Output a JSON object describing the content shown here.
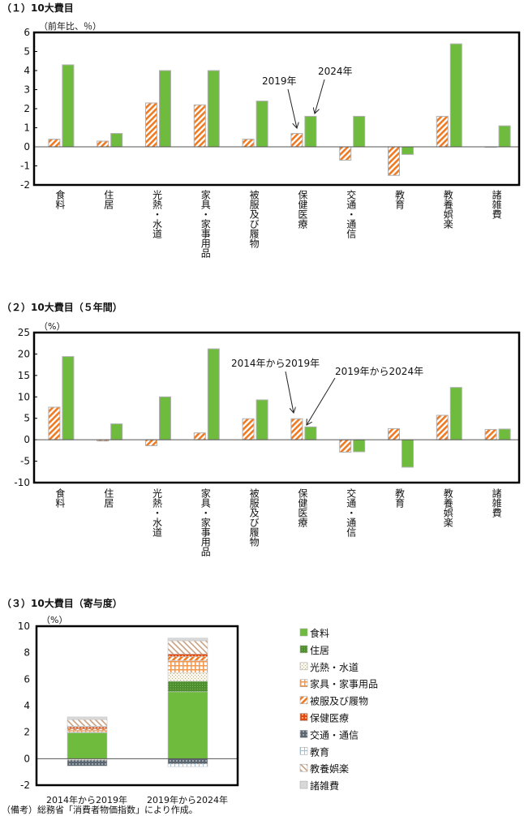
{
  "chart_data": [
    {
      "type": "bar",
      "title": "（１）10大費目",
      "ylabel": "（前年比、％）",
      "ylim": [
        -2,
        6
      ],
      "yticks": [
        -2,
        -1,
        0,
        1,
        2,
        3,
        4,
        5,
        6
      ],
      "categories": [
        "食料",
        "住居",
        "光熱・水道",
        "家具・家事用品",
        "被服及び履物",
        "保健医療",
        "交通・通信",
        "教育",
        "教養娯楽",
        "諸雑費"
      ],
      "series": [
        {
          "name": "2019年",
          "values": [
            0.4,
            0.3,
            2.3,
            2.2,
            0.4,
            0.7,
            -0.7,
            -1.5,
            1.6,
            0.0
          ]
        },
        {
          "name": "2024年",
          "values": [
            4.3,
            0.7,
            4.0,
            4.0,
            2.4,
            1.6,
            1.6,
            -0.4,
            5.4,
            1.1
          ]
        }
      ]
    },
    {
      "type": "bar",
      "title": "（２）10大費目（５年間）",
      "ylabel": "（%）",
      "ylim": [
        -10,
        25
      ],
      "yticks": [
        -10,
        -5,
        0,
        5,
        10,
        15,
        20,
        25
      ],
      "categories": [
        "食料",
        "住居",
        "光熱・水道",
        "家具・家事用品",
        "被服及び履物",
        "保健医療",
        "交通・通信",
        "教育",
        "教養娯楽",
        "諸雑費"
      ],
      "series": [
        {
          "name": "2014年から2019年",
          "values": [
            7.6,
            -0.3,
            -1.4,
            1.6,
            4.9,
            4.9,
            -2.9,
            2.6,
            5.7,
            2.4
          ]
        },
        {
          "name": "2019年から2024年",
          "values": [
            19.4,
            3.7,
            10.0,
            21.2,
            9.3,
            3.0,
            -2.8,
            -6.4,
            12.2,
            2.5
          ]
        }
      ]
    },
    {
      "type": "bar",
      "stacked": true,
      "title": "（３）10大費目（寄与度）",
      "ylabel": "（%）",
      "ylim": [
        -2,
        10
      ],
      "yticks": [
        -2,
        0,
        2,
        4,
        6,
        8,
        10
      ],
      "categories": [
        "2014年から2019年",
        "2019年から2024年"
      ],
      "legend_position": "right",
      "series": [
        {
          "name": "食料",
          "values": [
            1.95,
            5.05
          ]
        },
        {
          "name": "住居",
          "values": [
            0.05,
            0.8
          ]
        },
        {
          "name": "光熱・水道",
          "values": [
            -0.1,
            0.65
          ]
        },
        {
          "name": "家具・家事用品",
          "values": [
            0.15,
            0.9
          ]
        },
        {
          "name": "被服及び履物",
          "values": [
            0.1,
            0.3
          ]
        },
        {
          "name": "保健医療",
          "values": [
            0.15,
            0.2
          ]
        },
        {
          "name": "交通・通信",
          "values": [
            -0.45,
            -0.4
          ]
        },
        {
          "name": "教育",
          "values": [
            0.05,
            -0.2
          ]
        },
        {
          "name": "教養娯楽",
          "values": [
            0.5,
            1.0
          ]
        },
        {
          "name": "諸雑費",
          "values": [
            0.2,
            0.2
          ]
        }
      ]
    }
  ],
  "annotations": {
    "c1_a": "2019年",
    "c1_b": "2024年",
    "c2_a": "2014年から2019年",
    "c2_b": "2019年から2024年"
  },
  "footnote": "（備考）総務省「消費者物価指数」により作成。",
  "colors": {
    "green": "#6fbb3e",
    "orange": "#f07a22"
  }
}
